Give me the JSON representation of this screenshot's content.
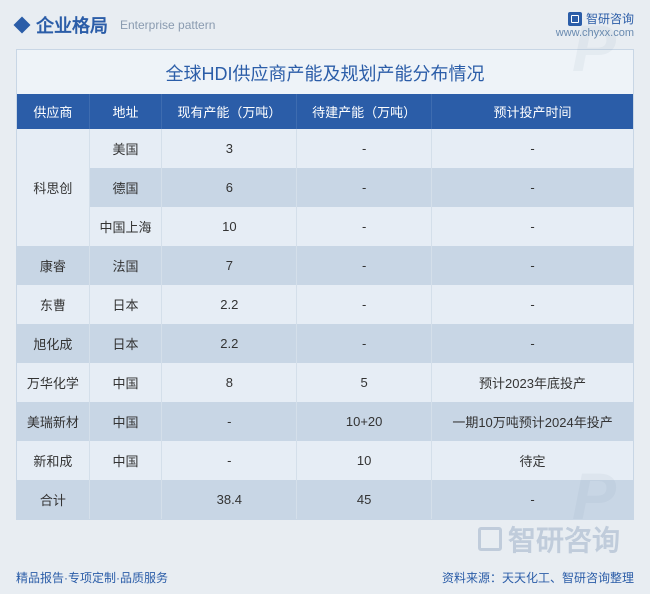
{
  "header": {
    "title_cn": "企业格局",
    "title_en": "Enterprise pattern",
    "brand_name": "智研咨询",
    "brand_url": "www.chyxx.com"
  },
  "table": {
    "title": "全球HDI供应商产能及规划产能分布情况",
    "columns": [
      "供应商",
      "地址",
      "现有产能（万吨）",
      "待建产能（万吨）",
      "预计投产时间"
    ],
    "rows": [
      {
        "supplier": "科思创",
        "location": "美国",
        "current": "3",
        "planned": "-",
        "time": "-",
        "rowspan": 3,
        "shade": "light"
      },
      {
        "supplier": "",
        "location": "德国",
        "current": "6",
        "planned": "-",
        "time": "-",
        "rowspan": 0,
        "shade": "dark"
      },
      {
        "supplier": "",
        "location": "中国上海",
        "current": "10",
        "planned": "-",
        "time": "-",
        "rowspan": 0,
        "shade": "light"
      },
      {
        "supplier": "康睿",
        "location": "法国",
        "current": "7",
        "planned": "-",
        "time": "-",
        "rowspan": 1,
        "shade": "dark"
      },
      {
        "supplier": "东曹",
        "location": "日本",
        "current": "2.2",
        "planned": "-",
        "time": "-",
        "rowspan": 1,
        "shade": "light"
      },
      {
        "supplier": "旭化成",
        "location": "日本",
        "current": "2.2",
        "planned": "-",
        "time": "-",
        "rowspan": 1,
        "shade": "dark"
      },
      {
        "supplier": "万华化学",
        "location": "中国",
        "current": "8",
        "planned": "5",
        "time": "预计2023年底投产",
        "rowspan": 1,
        "shade": "light"
      },
      {
        "supplier": "美瑞新材",
        "location": "中国",
        "current": "-",
        "planned": "10+20",
        "time": "一期10万吨预计2024年投产",
        "rowspan": 1,
        "shade": "dark"
      },
      {
        "supplier": "新和成",
        "location": "中国",
        "current": "-",
        "planned": "10",
        "time": "待定",
        "rowspan": 1,
        "shade": "light"
      },
      {
        "supplier": "合计",
        "location": "",
        "current": "38.4",
        "planned": "45",
        "time": "-",
        "rowspan": 1,
        "shade": "dark"
      }
    ]
  },
  "footer": {
    "left": "精品报告·专项定制·品质服务",
    "right": "资料来源：天天化工、智研咨询整理"
  },
  "watermark": {
    "bg_text": "P",
    "brand": "智研咨询"
  },
  "colors": {
    "header_bg": "#2b5da8",
    "row_light": "#e6edf5",
    "row_dark": "#c8d6e5",
    "page_bg": "#e8edf2"
  }
}
